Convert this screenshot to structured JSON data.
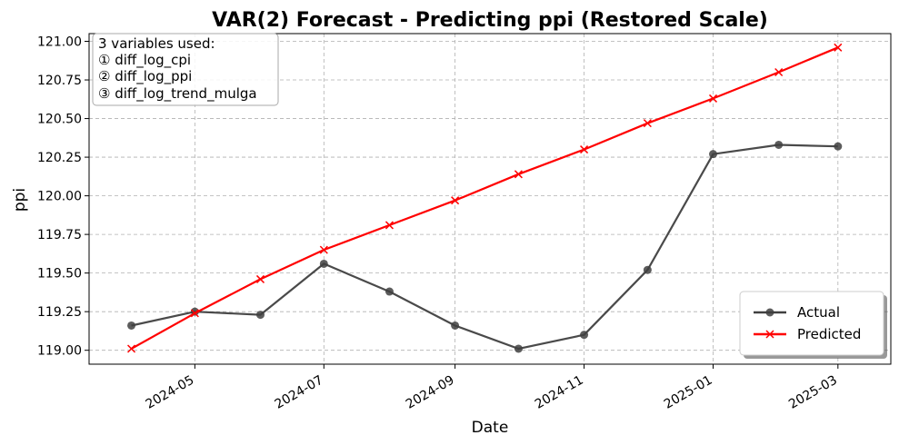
{
  "chart_data": {
    "type": "line",
    "title": "VAR(2) Forecast - Predicting ppi (Restored Scale)",
    "xlabel": "Date",
    "ylabel": "ppi",
    "x_ticks": [
      "2024-05",
      "2024-07",
      "2024-09",
      "2024-11",
      "2025-01",
      "2025-03"
    ],
    "y_ticks": [
      "119.00",
      "119.25",
      "119.50",
      "119.75",
      "120.00",
      "120.25",
      "120.50",
      "120.75",
      "121.00"
    ],
    "ylim": [
      118.91,
      121.05
    ],
    "xlim": [
      "2024-03-12",
      "2025-03-26"
    ],
    "x": [
      "2024-04-01",
      "2024-05-01",
      "2024-06-01",
      "2024-07-01",
      "2024-08-01",
      "2024-09-01",
      "2024-10-01",
      "2024-11-01",
      "2024-12-01",
      "2025-01-01",
      "2025-02-01",
      "2025-03-01"
    ],
    "series": [
      {
        "name": "Actual",
        "color": "#404040",
        "marker": "circle",
        "values": [
          119.16,
          119.25,
          119.23,
          119.56,
          119.38,
          119.16,
          119.01,
          119.1,
          119.52,
          120.27,
          120.33,
          120.32
        ]
      },
      {
        "name": "Predicted",
        "color": "#ff0000",
        "marker": "x",
        "values": [
          119.01,
          119.24,
          119.46,
          119.65,
          119.81,
          119.97,
          120.14,
          120.3,
          120.47,
          120.63,
          120.8,
          120.96
        ]
      }
    ],
    "grid": true,
    "legend_position": "lower-right",
    "info_box": {
      "lines": [
        "3 variables used:",
        "① diff_log_cpi",
        "② diff_log_ppi",
        "③ diff_log_trend_mulga"
      ],
      "position": "upper-left"
    }
  }
}
